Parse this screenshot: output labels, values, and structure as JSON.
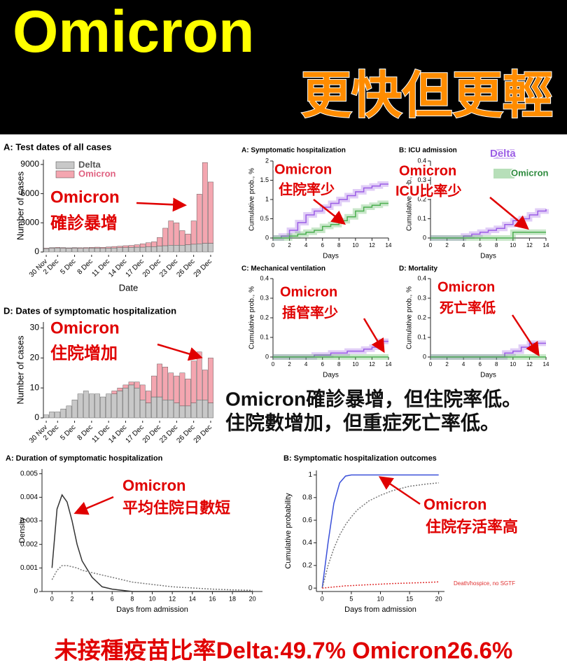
{
  "header": {
    "title": "Omicron",
    "subtitle": "更快但更輕"
  },
  "summary": [
    "Omicron確診暴增，但住院率低。",
    "住院數增加，但重症死亡率低。"
  ],
  "footer": "未接種疫苗比率Delta:49.7%  Omicron26.6%",
  "chart_data": [
    {
      "type": "bar",
      "stacked": true,
      "title": "A: Test dates of all cases",
      "x_label": "Date",
      "y_label": "Number of cases",
      "categories": [
        "30 Nov",
        null,
        "2 Dec",
        null,
        null,
        "5 Dec",
        null,
        null,
        "8 Dec",
        null,
        null,
        "11 Dec",
        null,
        null,
        "14 Dec",
        null,
        null,
        "17 Dec",
        null,
        null,
        "20 Dec",
        null,
        null,
        "23 Dec",
        null,
        null,
        "26 Dec",
        null,
        null,
        "29 Dec"
      ],
      "series": [
        {
          "name": "Delta",
          "color": "#c8c8c8",
          "values": [
            350,
            400,
            420,
            400,
            380,
            400,
            380,
            380,
            400,
            400,
            380,
            400,
            420,
            450,
            450,
            480,
            500,
            500,
            550,
            550,
            600,
            650,
            700,
            700,
            700,
            750,
            800,
            850,
            900,
            900
          ]
        },
        {
          "name": "Omicron",
          "color": "#f4a6b0",
          "values": [
            50,
            50,
            60,
            60,
            50,
            60,
            60,
            80,
            80,
            100,
            100,
            120,
            150,
            150,
            200,
            200,
            250,
            350,
            400,
            500,
            900,
            1800,
            2500,
            2300,
            1500,
            1100,
            2400,
            5100,
            8300,
            6300
          ]
        }
      ],
      "ylim": [
        0,
        9500
      ],
      "yticks": [
        0,
        3000,
        6000,
        9000
      ],
      "legend": "upper left",
      "annotation": [
        "Omicron",
        "確診暴增"
      ]
    },
    {
      "type": "bar",
      "stacked": true,
      "title": "D: Dates of symptomatic hospitalization",
      "y_label": "Number of cases",
      "categories": [
        "30 Nov",
        null,
        "2 Dec",
        null,
        null,
        "5 Dec",
        null,
        null,
        "8 Dec",
        null,
        null,
        "11 Dec",
        null,
        null,
        "14 Dec",
        null,
        null,
        "17 Dec",
        null,
        null,
        "20 Dec",
        null,
        null,
        "23 Dec",
        null,
        null,
        "26 Dec",
        null,
        null,
        "29 Dec"
      ],
      "series": [
        {
          "color": "#c8c8c8",
          "values": [
            1,
            2,
            2,
            3,
            4,
            6,
            8,
            9,
            8,
            8,
            7,
            8,
            8,
            9,
            10,
            11,
            10,
            6,
            5,
            7,
            7,
            6,
            6,
            5,
            4,
            4,
            5,
            6,
            6,
            5
          ]
        },
        {
          "color": "#f4a6b0",
          "values": [
            0,
            0,
            0,
            0,
            0,
            0,
            0,
            0,
            0,
            0,
            0,
            0,
            1,
            1,
            1,
            1,
            2,
            5,
            4,
            7,
            11,
            11,
            9,
            9,
            11,
            9,
            14,
            16,
            10,
            15
          ]
        }
      ],
      "ylim": [
        0,
        32
      ],
      "yticks": [
        0,
        10,
        20,
        30
      ],
      "annotation": [
        "Omicron",
        "住院增加"
      ]
    },
    {
      "type": "line",
      "step": true,
      "title": "A: Symptomatic hospitalization",
      "x_label": "Days",
      "y_label": "Cumulative prob., %",
      "x": [
        0,
        1,
        2,
        3,
        4,
        5,
        6,
        7,
        8,
        9,
        10,
        11,
        12,
        13,
        14
      ],
      "series": [
        {
          "color": "#9b5de5",
          "values": [
            0,
            0.05,
            0.2,
            0.4,
            0.6,
            0.7,
            0.8,
            0.9,
            1.0,
            1.1,
            1.2,
            1.3,
            1.35,
            1.4,
            1.4
          ]
        },
        {
          "color": "#4caf50",
          "values": [
            0,
            0,
            0.05,
            0.1,
            0.15,
            0.2,
            0.3,
            0.35,
            0.45,
            0.55,
            0.7,
            0.8,
            0.85,
            0.9,
            0.9
          ]
        }
      ],
      "xlim": [
        0,
        14
      ],
      "xticks": [
        0,
        2,
        4,
        6,
        8,
        10,
        12,
        14
      ],
      "ylim": [
        0,
        2
      ],
      "yticks": [
        0,
        0.5,
        1,
        1.5,
        2
      ],
      "annotation": [
        "Omicron",
        "住院率少"
      ]
    },
    {
      "type": "line",
      "step": true,
      "title": "B: ICU admission",
      "x_label": "Days",
      "y_label": "Cumulative prob., %",
      "x": [
        0,
        1,
        2,
        3,
        4,
        5,
        6,
        7,
        8,
        9,
        10,
        11,
        12,
        13,
        14
      ],
      "series": [
        {
          "name": "Delta",
          "color": "#9b5de5",
          "values": [
            0,
            0,
            0,
            0,
            0.01,
            0.02,
            0.03,
            0.04,
            0.05,
            0.07,
            0.09,
            0.1,
            0.12,
            0.14,
            0.15
          ]
        },
        {
          "name": "Omicron",
          "color": "#4caf50",
          "values": [
            0,
            0,
            0,
            0,
            0,
            0,
            0,
            0,
            0,
            0,
            0.03,
            0.03,
            0.03,
            0.03,
            0.03
          ]
        }
      ],
      "xlim": [
        0,
        14
      ],
      "xticks": [
        0,
        2,
        4,
        6,
        8,
        10,
        12,
        14
      ],
      "ylim": [
        0,
        0.4
      ],
      "yticks": [
        0,
        0.1,
        0.2,
        0.3,
        0.4
      ],
      "legend": "upper right",
      "annotation": [
        "Omicron",
        "ICU比率少"
      ]
    },
    {
      "type": "line",
      "step": true,
      "title": "C: Mechanical ventilation",
      "x_label": "Days",
      "y_label": "Cumulative prob., %",
      "x": [
        0,
        1,
        2,
        3,
        4,
        5,
        6,
        7,
        8,
        9,
        10,
        11,
        12,
        13,
        14
      ],
      "series": [
        {
          "color": "#9b5de5",
          "values": [
            0,
            0,
            0,
            0,
            0,
            0.01,
            0.01,
            0.02,
            0.02,
            0.03,
            0.03,
            0.04,
            0.05,
            0.08,
            0.08
          ]
        },
        {
          "color": "#4caf50",
          "values": [
            0,
            0,
            0,
            0,
            0,
            0,
            0,
            0,
            0,
            0,
            0,
            0,
            0,
            0,
            0
          ]
        }
      ],
      "xlim": [
        0,
        14
      ],
      "xticks": [
        0,
        2,
        4,
        6,
        8,
        10,
        12,
        14
      ],
      "ylim": [
        0,
        0.4
      ],
      "yticks": [
        0,
        0.1,
        0.2,
        0.3,
        0.4
      ],
      "annotation": [
        "Omicron",
        "插管率少"
      ]
    },
    {
      "type": "line",
      "step": true,
      "title": "D: Mortality",
      "x_label": "Days",
      "y_label": "Cumulative prob., %",
      "x": [
        0,
        1,
        2,
        3,
        4,
        5,
        6,
        7,
        8,
        9,
        10,
        11,
        12,
        13,
        14
      ],
      "series": [
        {
          "color": "#9b5de5",
          "values": [
            0,
            0,
            0,
            0,
            0,
            0,
            0,
            0,
            0,
            0.02,
            0.03,
            0.05,
            0.07,
            0.07,
            0.07
          ]
        },
        {
          "color": "#4caf50",
          "values": [
            0,
            0,
            0,
            0,
            0,
            0,
            0,
            0,
            0,
            0,
            0,
            0,
            0,
            0,
            0
          ]
        }
      ],
      "xlim": [
        0,
        14
      ],
      "xticks": [
        0,
        2,
        4,
        6,
        8,
        10,
        12,
        14
      ],
      "ylim": [
        0,
        0.4
      ],
      "yticks": [
        0,
        0.1,
        0.2,
        0.3,
        0.4
      ],
      "annotation": [
        "Omicron",
        "死亡率低"
      ]
    },
    {
      "type": "line",
      "title": "A: Duration of symptomatic hospitalization",
      "x_label": "Days from admission",
      "y_label": "Density",
      "x": [
        0,
        0.5,
        1,
        1.5,
        2,
        2.5,
        3,
        4,
        5,
        6,
        8,
        10,
        12,
        14,
        16,
        18,
        20
      ],
      "series": [
        {
          "color": "#333333",
          "linestyle": "solid",
          "values": [
            0.001,
            0.0035,
            0.0041,
            0.0038,
            0.003,
            0.002,
            0.0013,
            0.0006,
            0.0002,
            0.0001,
            0,
            0,
            0,
            0,
            0,
            0,
            0
          ]
        },
        {
          "color": "#777777",
          "linestyle": "dotted",
          "values": [
            0.0005,
            0.0009,
            0.0011,
            0.0011,
            0.00105,
            0.001,
            0.0009,
            0.0008,
            0.0007,
            0.0006,
            0.0004,
            0.0003,
            0.0002,
            0.00015,
            0.0001,
            7e-05,
            5e-05
          ]
        }
      ],
      "xlim": [
        -1,
        21
      ],
      "xticks": [
        0,
        2,
        4,
        6,
        8,
        10,
        12,
        14,
        16,
        18,
        20
      ],
      "ylim": [
        0,
        0.0052
      ],
      "yticks": [
        0,
        0.001,
        0.002,
        0.003,
        0.004,
        0.005
      ],
      "annotation": [
        "Omicron",
        "平均住院日數短"
      ]
    },
    {
      "type": "line",
      "title": "B: Symptomatic hospitalization outcomes",
      "x_label": "Days from admission",
      "y_label": "Cumulative probability",
      "x": [
        0,
        1,
        2,
        3,
        4,
        5,
        6,
        8,
        10,
        12,
        15,
        18,
        20
      ],
      "series": [
        {
          "color": "#3a50d9",
          "linestyle": "solid",
          "values": [
            0,
            0.4,
            0.75,
            0.93,
            0.99,
            1,
            1,
            1,
            1,
            1,
            1,
            1,
            1
          ]
        },
        {
          "color": "#777777",
          "linestyle": "dotted",
          "values": [
            0,
            0.2,
            0.35,
            0.47,
            0.56,
            0.63,
            0.69,
            0.77,
            0.82,
            0.86,
            0.9,
            0.92,
            0.93
          ]
        },
        {
          "name": "Death/hospice, no SGTF",
          "color": "#e03030",
          "linestyle": "dotted",
          "values": [
            0,
            0.005,
            0.01,
            0.015,
            0.02,
            0.022,
            0.025,
            0.03,
            0.035,
            0.04,
            0.045,
            0.05,
            0.055
          ]
        }
      ],
      "xlim": [
        -1,
        21
      ],
      "xticks": [
        0,
        5,
        10,
        15,
        20
      ],
      "ylim": [
        -0.03,
        1.04
      ],
      "yticks": [
        0,
        0.2,
        0.4,
        0.6,
        0.8,
        1
      ],
      "annotation": [
        "Omicron",
        "住院存活率高"
      ]
    }
  ]
}
